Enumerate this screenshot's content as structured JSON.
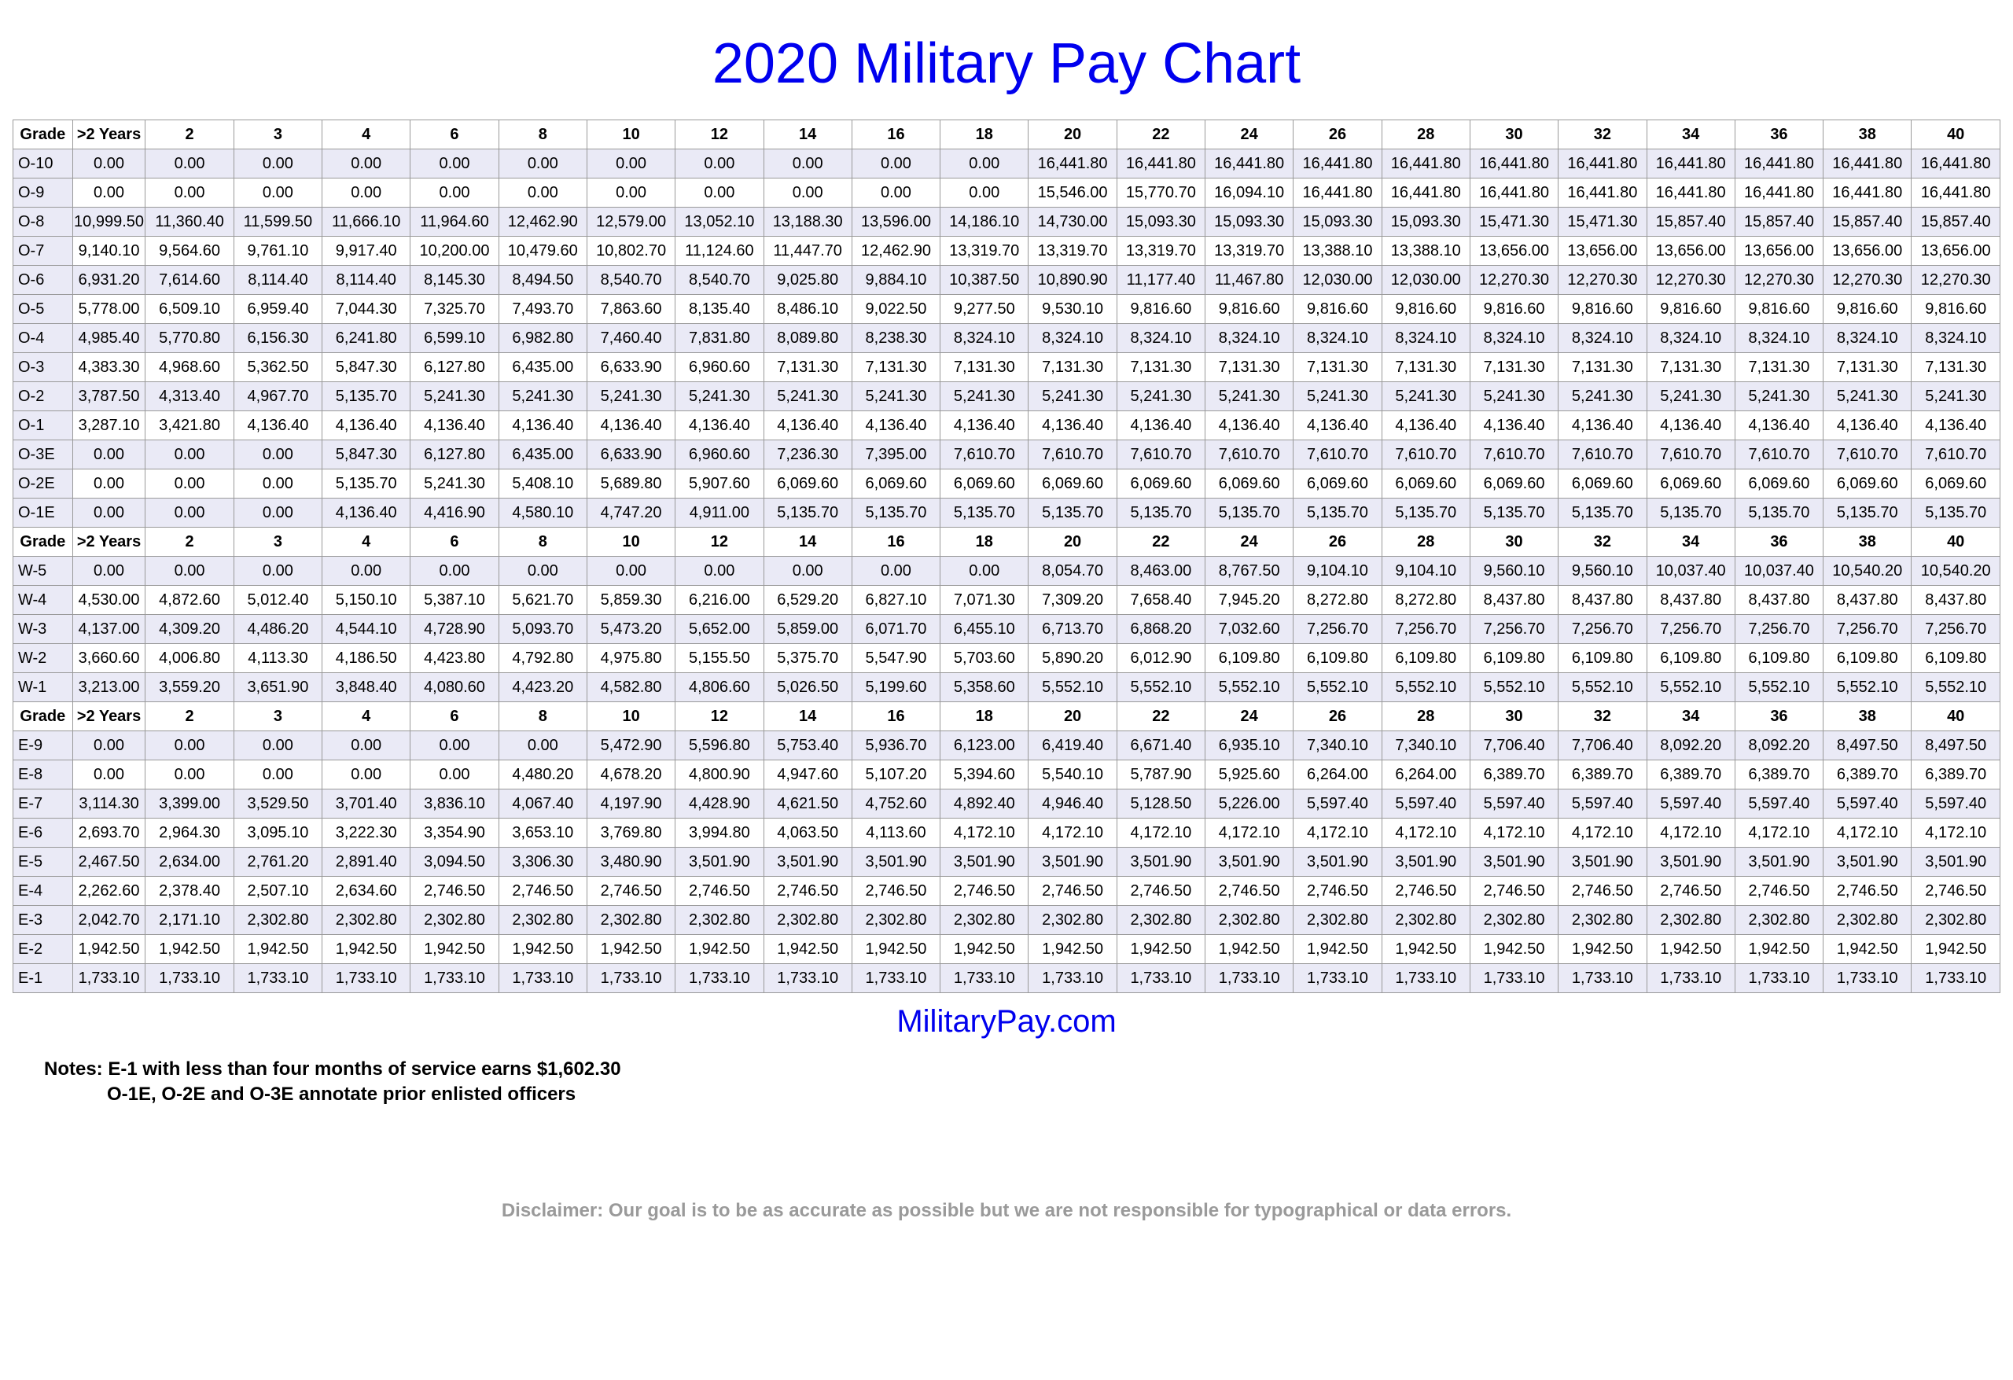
{
  "title": "2020 Military Pay Chart",
  "site": "MilitaryPay.com",
  "notes_label": "Notes:",
  "note1": "E-1 with less than four months of service earns $1,602.30",
  "note2": "O-1E, O-2E and O-3E annotate prior enlisted officers",
  "disclaimer": "Disclaimer: Our goal is to be as accurate as possible but we are not responsible for typographical or data errors.",
  "columns": [
    "Grade",
    ">2 Years",
    "2",
    "3",
    "4",
    "6",
    "8",
    "10",
    "12",
    "14",
    "16",
    "18",
    "20",
    "22",
    "24",
    "26",
    "28",
    "30",
    "32",
    "34",
    "36",
    "38",
    "40"
  ],
  "sections": [
    {
      "rows": [
        {
          "grade": "O-10",
          "v": [
            "0.00",
            "0.00",
            "0.00",
            "0.00",
            "0.00",
            "0.00",
            "0.00",
            "0.00",
            "0.00",
            "0.00",
            "0.00",
            "16,441.80",
            "16,441.80",
            "16,441.80",
            "16,441.80",
            "16,441.80",
            "16,441.80",
            "16,441.80",
            "16,441.80",
            "16,441.80",
            "16,441.80",
            "16,441.80"
          ]
        },
        {
          "grade": "O-9",
          "v": [
            "0.00",
            "0.00",
            "0.00",
            "0.00",
            "0.00",
            "0.00",
            "0.00",
            "0.00",
            "0.00",
            "0.00",
            "0.00",
            "15,546.00",
            "15,770.70",
            "16,094.10",
            "16,441.80",
            "16,441.80",
            "16,441.80",
            "16,441.80",
            "16,441.80",
            "16,441.80",
            "16,441.80",
            "16,441.80"
          ]
        },
        {
          "grade": "O-8",
          "v": [
            "10,999.50",
            "11,360.40",
            "11,599.50",
            "11,666.10",
            "11,964.60",
            "12,462.90",
            "12,579.00",
            "13,052.10",
            "13,188.30",
            "13,596.00",
            "14,186.10",
            "14,730.00",
            "15,093.30",
            "15,093.30",
            "15,093.30",
            "15,093.30",
            "15,471.30",
            "15,471.30",
            "15,857.40",
            "15,857.40",
            "15,857.40",
            "15,857.40"
          ]
        },
        {
          "grade": "O-7",
          "v": [
            "9,140.10",
            "9,564.60",
            "9,761.10",
            "9,917.40",
            "10,200.00",
            "10,479.60",
            "10,802.70",
            "11,124.60",
            "11,447.70",
            "12,462.90",
            "13,319.70",
            "13,319.70",
            "13,319.70",
            "13,319.70",
            "13,388.10",
            "13,388.10",
            "13,656.00",
            "13,656.00",
            "13,656.00",
            "13,656.00",
            "13,656.00",
            "13,656.00"
          ]
        },
        {
          "grade": "O-6",
          "v": [
            "6,931.20",
            "7,614.60",
            "8,114.40",
            "8,114.40",
            "8,145.30",
            "8,494.50",
            "8,540.70",
            "8,540.70",
            "9,025.80",
            "9,884.10",
            "10,387.50",
            "10,890.90",
            "11,177.40",
            "11,467.80",
            "12,030.00",
            "12,030.00",
            "12,270.30",
            "12,270.30",
            "12,270.30",
            "12,270.30",
            "12,270.30",
            "12,270.30"
          ]
        },
        {
          "grade": "O-5",
          "v": [
            "5,778.00",
            "6,509.10",
            "6,959.40",
            "7,044.30",
            "7,325.70",
            "7,493.70",
            "7,863.60",
            "8,135.40",
            "8,486.10",
            "9,022.50",
            "9,277.50",
            "9,530.10",
            "9,816.60",
            "9,816.60",
            "9,816.60",
            "9,816.60",
            "9,816.60",
            "9,816.60",
            "9,816.60",
            "9,816.60",
            "9,816.60",
            "9,816.60"
          ]
        },
        {
          "grade": "O-4",
          "v": [
            "4,985.40",
            "5,770.80",
            "6,156.30",
            "6,241.80",
            "6,599.10",
            "6,982.80",
            "7,460.40",
            "7,831.80",
            "8,089.80",
            "8,238.30",
            "8,324.10",
            "8,324.10",
            "8,324.10",
            "8,324.10",
            "8,324.10",
            "8,324.10",
            "8,324.10",
            "8,324.10",
            "8,324.10",
            "8,324.10",
            "8,324.10",
            "8,324.10"
          ]
        },
        {
          "grade": "O-3",
          "v": [
            "4,383.30",
            "4,968.60",
            "5,362.50",
            "5,847.30",
            "6,127.80",
            "6,435.00",
            "6,633.90",
            "6,960.60",
            "7,131.30",
            "7,131.30",
            "7,131.30",
            "7,131.30",
            "7,131.30",
            "7,131.30",
            "7,131.30",
            "7,131.30",
            "7,131.30",
            "7,131.30",
            "7,131.30",
            "7,131.30",
            "7,131.30",
            "7,131.30"
          ]
        },
        {
          "grade": "O-2",
          "v": [
            "3,787.50",
            "4,313.40",
            "4,967.70",
            "5,135.70",
            "5,241.30",
            "5,241.30",
            "5,241.30",
            "5,241.30",
            "5,241.30",
            "5,241.30",
            "5,241.30",
            "5,241.30",
            "5,241.30",
            "5,241.30",
            "5,241.30",
            "5,241.30",
            "5,241.30",
            "5,241.30",
            "5,241.30",
            "5,241.30",
            "5,241.30",
            "5,241.30"
          ]
        },
        {
          "grade": "O-1",
          "v": [
            "3,287.10",
            "3,421.80",
            "4,136.40",
            "4,136.40",
            "4,136.40",
            "4,136.40",
            "4,136.40",
            "4,136.40",
            "4,136.40",
            "4,136.40",
            "4,136.40",
            "4,136.40",
            "4,136.40",
            "4,136.40",
            "4,136.40",
            "4,136.40",
            "4,136.40",
            "4,136.40",
            "4,136.40",
            "4,136.40",
            "4,136.40",
            "4,136.40"
          ]
        },
        {
          "grade": "O-3E",
          "v": [
            "0.00",
            "0.00",
            "0.00",
            "5,847.30",
            "6,127.80",
            "6,435.00",
            "6,633.90",
            "6,960.60",
            "7,236.30",
            "7,395.00",
            "7,610.70",
            "7,610.70",
            "7,610.70",
            "7,610.70",
            "7,610.70",
            "7,610.70",
            "7,610.70",
            "7,610.70",
            "7,610.70",
            "7,610.70",
            "7,610.70",
            "7,610.70"
          ]
        },
        {
          "grade": "O-2E",
          "v": [
            "0.00",
            "0.00",
            "0.00",
            "5,135.70",
            "5,241.30",
            "5,408.10",
            "5,689.80",
            "5,907.60",
            "6,069.60",
            "6,069.60",
            "6,069.60",
            "6,069.60",
            "6,069.60",
            "6,069.60",
            "6,069.60",
            "6,069.60",
            "6,069.60",
            "6,069.60",
            "6,069.60",
            "6,069.60",
            "6,069.60",
            "6,069.60"
          ]
        },
        {
          "grade": "O-1E",
          "v": [
            "0.00",
            "0.00",
            "0.00",
            "4,136.40",
            "4,416.90",
            "4,580.10",
            "4,747.20",
            "4,911.00",
            "5,135.70",
            "5,135.70",
            "5,135.70",
            "5,135.70",
            "5,135.70",
            "5,135.70",
            "5,135.70",
            "5,135.70",
            "5,135.70",
            "5,135.70",
            "5,135.70",
            "5,135.70",
            "5,135.70",
            "5,135.70"
          ]
        }
      ]
    },
    {
      "rows": [
        {
          "grade": "W-5",
          "v": [
            "0.00",
            "0.00",
            "0.00",
            "0.00",
            "0.00",
            "0.00",
            "0.00",
            "0.00",
            "0.00",
            "0.00",
            "0.00",
            "8,054.70",
            "8,463.00",
            "8,767.50",
            "9,104.10",
            "9,104.10",
            "9,560.10",
            "9,560.10",
            "10,037.40",
            "10,037.40",
            "10,540.20",
            "10,540.20"
          ]
        },
        {
          "grade": "W-4",
          "v": [
            "4,530.00",
            "4,872.60",
            "5,012.40",
            "5,150.10",
            "5,387.10",
            "5,621.70",
            "5,859.30",
            "6,216.00",
            "6,529.20",
            "6,827.10",
            "7,071.30",
            "7,309.20",
            "7,658.40",
            "7,945.20",
            "8,272.80",
            "8,272.80",
            "8,437.80",
            "8,437.80",
            "8,437.80",
            "8,437.80",
            "8,437.80",
            "8,437.80"
          ]
        },
        {
          "grade": "W-3",
          "v": [
            "4,137.00",
            "4,309.20",
            "4,486.20",
            "4,544.10",
            "4,728.90",
            "5,093.70",
            "5,473.20",
            "5,652.00",
            "5,859.00",
            "6,071.70",
            "6,455.10",
            "6,713.70",
            "6,868.20",
            "7,032.60",
            "7,256.70",
            "7,256.70",
            "7,256.70",
            "7,256.70",
            "7,256.70",
            "7,256.70",
            "7,256.70",
            "7,256.70"
          ]
        },
        {
          "grade": "W-2",
          "v": [
            "3,660.60",
            "4,006.80",
            "4,113.30",
            "4,186.50",
            "4,423.80",
            "4,792.80",
            "4,975.80",
            "5,155.50",
            "5,375.70",
            "5,547.90",
            "5,703.60",
            "5,890.20",
            "6,012.90",
            "6,109.80",
            "6,109.80",
            "6,109.80",
            "6,109.80",
            "6,109.80",
            "6,109.80",
            "6,109.80",
            "6,109.80",
            "6,109.80"
          ]
        },
        {
          "grade": "W-1",
          "v": [
            "3,213.00",
            "3,559.20",
            "3,651.90",
            "3,848.40",
            "4,080.60",
            "4,423.20",
            "4,582.80",
            "4,806.60",
            "5,026.50",
            "5,199.60",
            "5,358.60",
            "5,552.10",
            "5,552.10",
            "5,552.10",
            "5,552.10",
            "5,552.10",
            "5,552.10",
            "5,552.10",
            "5,552.10",
            "5,552.10",
            "5,552.10",
            "5,552.10"
          ]
        }
      ]
    },
    {
      "rows": [
        {
          "grade": "E-9",
          "v": [
            "0.00",
            "0.00",
            "0.00",
            "0.00",
            "0.00",
            "0.00",
            "5,472.90",
            "5,596.80",
            "5,753.40",
            "5,936.70",
            "6,123.00",
            "6,419.40",
            "6,671.40",
            "6,935.10",
            "7,340.10",
            "7,340.10",
            "7,706.40",
            "7,706.40",
            "8,092.20",
            "8,092.20",
            "8,497.50",
            "8,497.50"
          ]
        },
        {
          "grade": "E-8",
          "v": [
            "0.00",
            "0.00",
            "0.00",
            "0.00",
            "0.00",
            "4,480.20",
            "4,678.20",
            "4,800.90",
            "4,947.60",
            "5,107.20",
            "5,394.60",
            "5,540.10",
            "5,787.90",
            "5,925.60",
            "6,264.00",
            "6,264.00",
            "6,389.70",
            "6,389.70",
            "6,389.70",
            "6,389.70",
            "6,389.70",
            "6,389.70"
          ]
        },
        {
          "grade": "E-7",
          "v": [
            "3,114.30",
            "3,399.00",
            "3,529.50",
            "3,701.40",
            "3,836.10",
            "4,067.40",
            "4,197.90",
            "4,428.90",
            "4,621.50",
            "4,752.60",
            "4,892.40",
            "4,946.40",
            "5,128.50",
            "5,226.00",
            "5,597.40",
            "5,597.40",
            "5,597.40",
            "5,597.40",
            "5,597.40",
            "5,597.40",
            "5,597.40",
            "5,597.40"
          ]
        },
        {
          "grade": "E-6",
          "v": [
            "2,693.70",
            "2,964.30",
            "3,095.10",
            "3,222.30",
            "3,354.90",
            "3,653.10",
            "3,769.80",
            "3,994.80",
            "4,063.50",
            "4,113.60",
            "4,172.10",
            "4,172.10",
            "4,172.10",
            "4,172.10",
            "4,172.10",
            "4,172.10",
            "4,172.10",
            "4,172.10",
            "4,172.10",
            "4,172.10",
            "4,172.10",
            "4,172.10"
          ]
        },
        {
          "grade": "E-5",
          "v": [
            "2,467.50",
            "2,634.00",
            "2,761.20",
            "2,891.40",
            "3,094.50",
            "3,306.30",
            "3,480.90",
            "3,501.90",
            "3,501.90",
            "3,501.90",
            "3,501.90",
            "3,501.90",
            "3,501.90",
            "3,501.90",
            "3,501.90",
            "3,501.90",
            "3,501.90",
            "3,501.90",
            "3,501.90",
            "3,501.90",
            "3,501.90",
            "3,501.90"
          ]
        },
        {
          "grade": "E-4",
          "v": [
            "2,262.60",
            "2,378.40",
            "2,507.10",
            "2,634.60",
            "2,746.50",
            "2,746.50",
            "2,746.50",
            "2,746.50",
            "2,746.50",
            "2,746.50",
            "2,746.50",
            "2,746.50",
            "2,746.50",
            "2,746.50",
            "2,746.50",
            "2,746.50",
            "2,746.50",
            "2,746.50",
            "2,746.50",
            "2,746.50",
            "2,746.50",
            "2,746.50"
          ]
        },
        {
          "grade": "E-3",
          "v": [
            "2,042.70",
            "2,171.10",
            "2,302.80",
            "2,302.80",
            "2,302.80",
            "2,302.80",
            "2,302.80",
            "2,302.80",
            "2,302.80",
            "2,302.80",
            "2,302.80",
            "2,302.80",
            "2,302.80",
            "2,302.80",
            "2,302.80",
            "2,302.80",
            "2,302.80",
            "2,302.80",
            "2,302.80",
            "2,302.80",
            "2,302.80",
            "2,302.80"
          ]
        },
        {
          "grade": "E-2",
          "v": [
            "1,942.50",
            "1,942.50",
            "1,942.50",
            "1,942.50",
            "1,942.50",
            "1,942.50",
            "1,942.50",
            "1,942.50",
            "1,942.50",
            "1,942.50",
            "1,942.50",
            "1,942.50",
            "1,942.50",
            "1,942.50",
            "1,942.50",
            "1,942.50",
            "1,942.50",
            "1,942.50",
            "1,942.50",
            "1,942.50",
            "1,942.50",
            "1,942.50"
          ]
        },
        {
          "grade": "E-1",
          "v": [
            "1,733.10",
            "1,733.10",
            "1,733.10",
            "1,733.10",
            "1,733.10",
            "1,733.10",
            "1,733.10",
            "1,733.10",
            "1,733.10",
            "1,733.10",
            "1,733.10",
            "1,733.10",
            "1,733.10",
            "1,733.10",
            "1,733.10",
            "1,733.10",
            "1,733.10",
            "1,733.10",
            "1,733.10",
            "1,733.10",
            "1,733.10",
            "1,733.10"
          ]
        }
      ]
    }
  ]
}
